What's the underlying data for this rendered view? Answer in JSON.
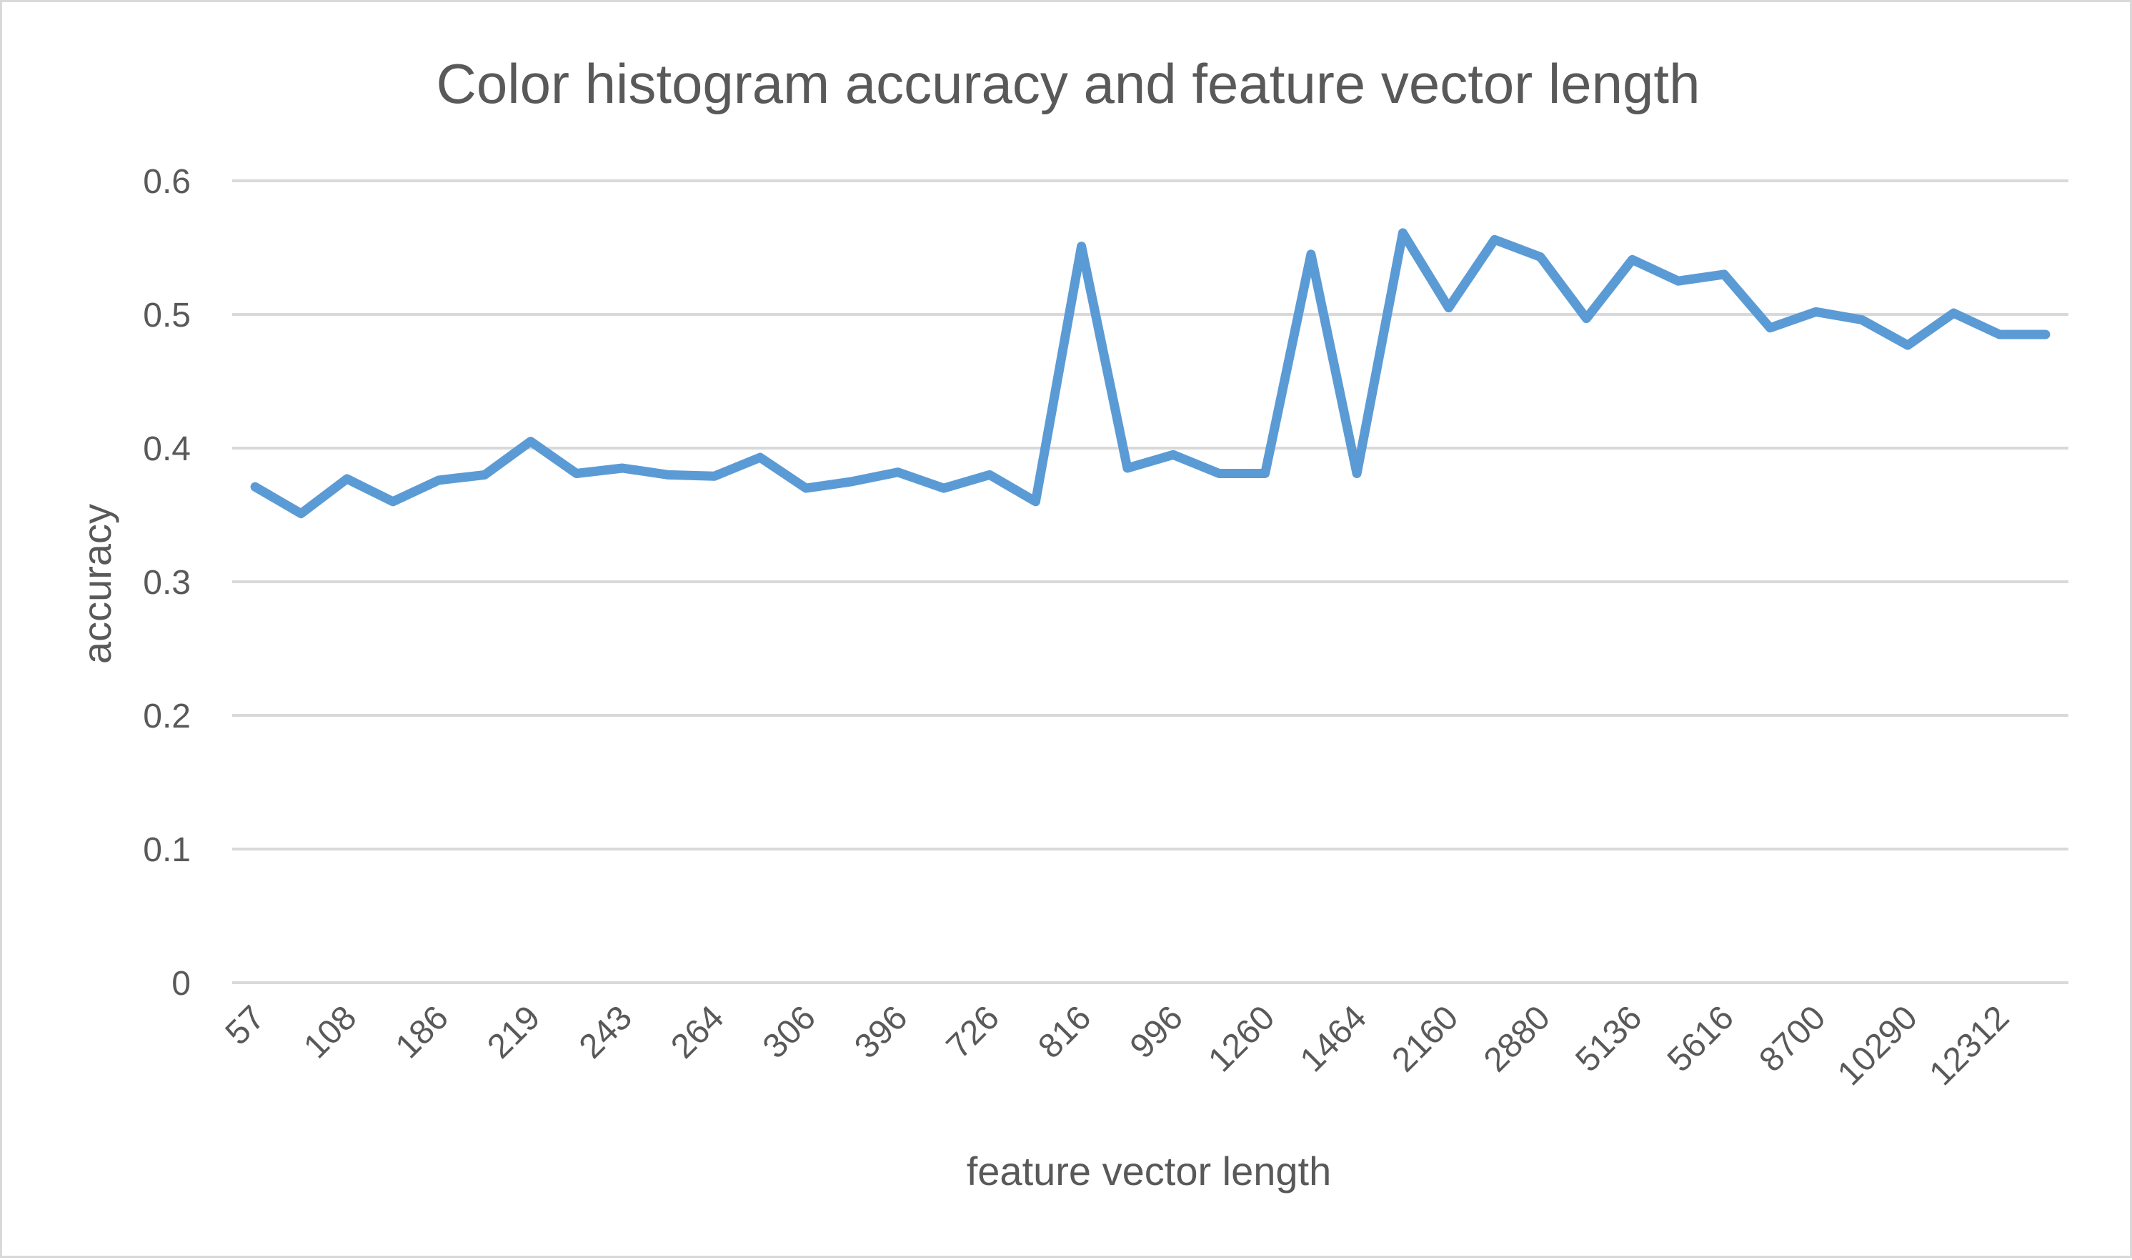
{
  "chart_data": {
    "type": "line",
    "title": "Color histogram accuracy and feature vector length",
    "xlabel": "feature vector length",
    "ylabel": "accuracy",
    "ylim": [
      0,
      0.6
    ],
    "yticks": [
      "0",
      "0.1",
      "0.2",
      "0.3",
      "0.4",
      "0.5",
      "0.6"
    ],
    "ytick_values": [
      0,
      0.1,
      0.2,
      0.3,
      0.4,
      0.5,
      0.6
    ],
    "grid": true,
    "legend": "none",
    "color": "#5b9bd5",
    "x_tick_labels": [
      "57",
      "108",
      "186",
      "219",
      "243",
      "264",
      "306",
      "396",
      "726",
      "816",
      "996",
      "1260",
      "1464",
      "2160",
      "2880",
      "5136",
      "5616",
      "8700",
      "10290",
      "12312"
    ],
    "x_tick_every": 2,
    "point_count": 40,
    "series": [
      {
        "values": [
          0.371,
          0.351,
          0.377,
          0.36,
          0.376,
          0.38,
          0.405,
          0.381,
          0.385,
          0.38,
          0.379,
          0.393,
          0.37,
          0.375,
          0.382,
          0.37,
          0.38,
          0.36,
          0.551,
          0.385,
          0.395,
          0.381,
          0.381,
          0.545,
          0.381,
          0.561,
          0.505,
          0.556,
          0.543,
          0.497,
          0.541,
          0.525,
          0.53,
          0.49,
          0.502,
          0.496,
          0.477,
          0.501,
          0.485,
          0.485
        ]
      }
    ]
  }
}
